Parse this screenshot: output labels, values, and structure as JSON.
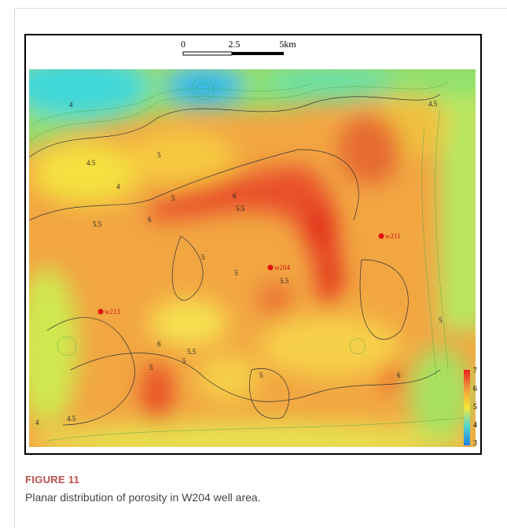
{
  "figure": {
    "scale_bar": {
      "labels": [
        "0",
        "2.5",
        "5km"
      ]
    },
    "wells": [
      {
        "label": "w211"
      },
      {
        "label": "w204"
      },
      {
        "label": "w213"
      }
    ],
    "contour_labels": [
      "4",
      "4.5",
      "4",
      "5",
      "5",
      "5.5",
      "6",
      "5.5",
      "6",
      "5",
      "5.5",
      "5",
      "5",
      "5.5",
      "6",
      "5",
      "4.5",
      "5",
      "6",
      "4.5",
      "4",
      "5"
    ],
    "colorbar": {
      "ticks": [
        7,
        6,
        5,
        4,
        3
      ]
    }
  },
  "caption": {
    "label": "FIGURE 11",
    "text": "Planar distribution of porosity in W204 well area."
  }
}
